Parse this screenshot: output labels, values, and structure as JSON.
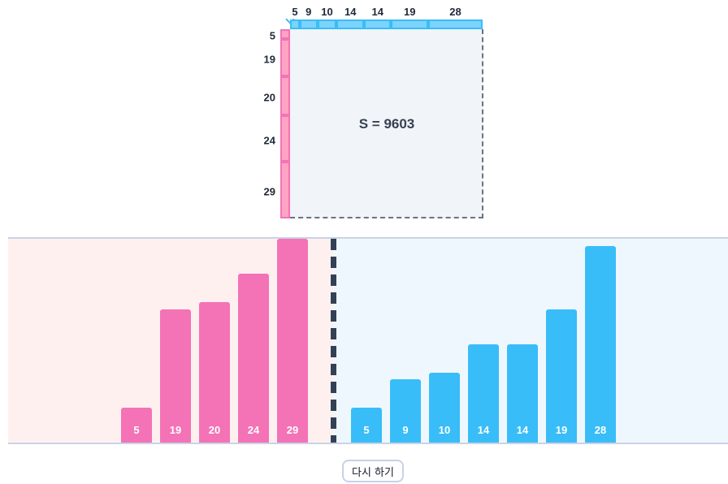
{
  "top_lengths": [
    5,
    9,
    10,
    14,
    14,
    19,
    28
  ],
  "left_lengths": [
    5,
    19,
    20,
    24,
    29
  ],
  "area_text": "S = 9603",
  "pink_bars": [
    {
      "label": "5",
      "value": 5
    },
    {
      "label": "19",
      "value": 19
    },
    {
      "label": "20",
      "value": 20
    },
    {
      "label": "24",
      "value": 24
    },
    {
      "label": "29",
      "value": 29
    }
  ],
  "blue_bars": [
    {
      "label": "5",
      "value": 5
    },
    {
      "label": "9",
      "value": 9
    },
    {
      "label": "10",
      "value": 10
    },
    {
      "label": "14",
      "value": 14
    },
    {
      "label": "14",
      "value": 14
    },
    {
      "label": "19",
      "value": 19
    },
    {
      "label": "28",
      "value": 28
    }
  ],
  "reset_label": "다시 하기",
  "colors": {
    "pink": "#f472b6",
    "blue": "#38bdf8"
  }
}
